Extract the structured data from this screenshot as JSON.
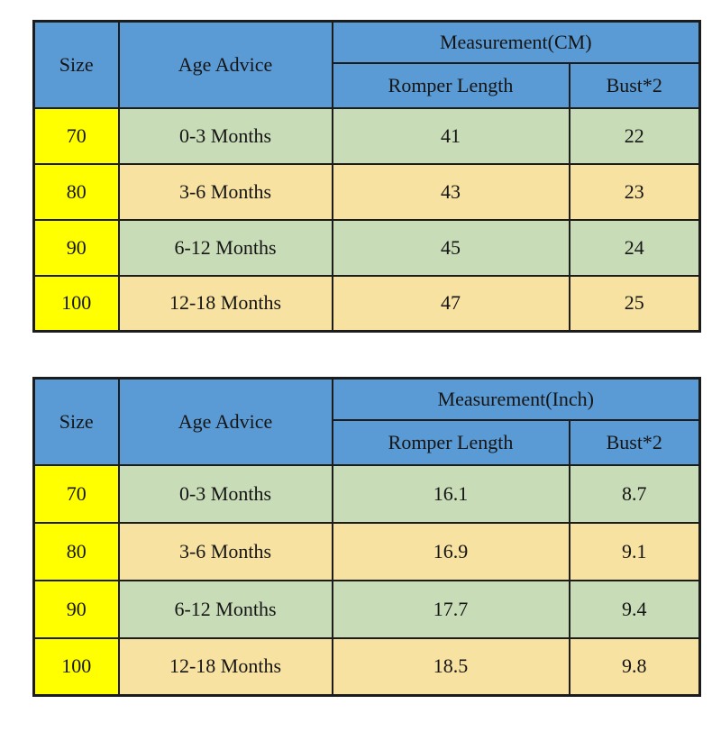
{
  "colors": {
    "header_bg": "#5B9BD5",
    "size_column_bg": "#FFFF00",
    "row_green_bg": "#C8DCB7",
    "row_tan_bg": "#F8E2A1",
    "border": "#1C1C1C",
    "text": "#151515",
    "page_bg": "#FFFFFF"
  },
  "chart_data": [
    {
      "type": "table",
      "title": "Measurement(CM)",
      "unit": "CM",
      "header": {
        "size": "Size",
        "age": "Age Advice",
        "measurement": "Measurement(CM)",
        "romper": "Romper Length",
        "bust": "Bust*2"
      },
      "rows": [
        {
          "size": "70",
          "age": "0-3 Months",
          "romper_length": "41",
          "bust": "22",
          "tone": "green"
        },
        {
          "size": "80",
          "age": "3-6 Months",
          "romper_length": "43",
          "bust": "23",
          "tone": "tan"
        },
        {
          "size": "90",
          "age": "6-12 Months",
          "romper_length": "45",
          "bust": "24",
          "tone": "green"
        },
        {
          "size": "100",
          "age": "12-18 Months",
          "romper_length": "47",
          "bust": "25",
          "tone": "tan"
        }
      ]
    },
    {
      "type": "table",
      "title": "Measurement(Inch)",
      "unit": "Inch",
      "header": {
        "size": "Size",
        "age": "Age Advice",
        "measurement": "Measurement(Inch)",
        "romper": "Romper Length",
        "bust": "Bust*2"
      },
      "rows": [
        {
          "size": "70",
          "age": "0-3 Months",
          "romper_length": "16.1",
          "bust": "8.7",
          "tone": "green"
        },
        {
          "size": "80",
          "age": "3-6 Months",
          "romper_length": "16.9",
          "bust": "9.1",
          "tone": "tan"
        },
        {
          "size": "90",
          "age": "6-12 Months",
          "romper_length": "17.7",
          "bust": "9.4",
          "tone": "green"
        },
        {
          "size": "100",
          "age": "12-18 Months",
          "romper_length": "18.5",
          "bust": "9.8",
          "tone": "tan"
        }
      ]
    }
  ]
}
